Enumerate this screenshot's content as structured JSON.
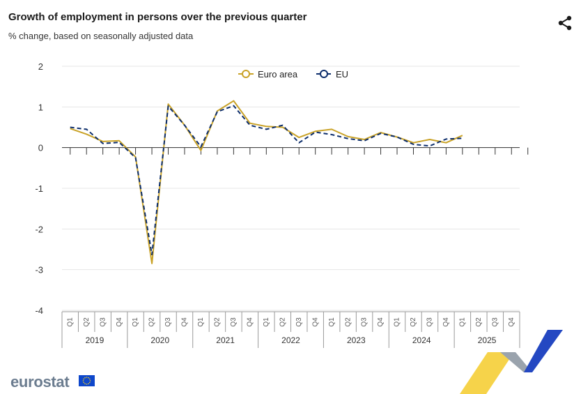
{
  "header": {
    "title": "Growth of employment in persons over the previous quarter",
    "subtitle": "% change, based on seasonally adjusted data",
    "share_icon": "share-icon"
  },
  "footer": {
    "logo_text": "eurostat",
    "flag_icon": "eu-flag-icon"
  },
  "chart_data": {
    "type": "line",
    "title": "Growth of employment in persons over the previous quarter",
    "subtitle": "% change, based on seasonally adjusted data",
    "ylim": [
      -4,
      2
    ],
    "yticks": [
      2,
      1,
      0,
      -1,
      -2,
      -3,
      -4
    ],
    "grid": true,
    "legend_position": "top-center",
    "quarters": [
      "Q1",
      "Q2",
      "Q3",
      "Q4"
    ],
    "years": [
      "2019",
      "2020",
      "2021",
      "2022",
      "2023",
      "2024",
      "2025"
    ],
    "categories": [
      "2019 Q1",
      "2019 Q2",
      "2019 Q3",
      "2019 Q4",
      "2020 Q1",
      "2020 Q2",
      "2020 Q3",
      "2020 Q4",
      "2021 Q1",
      "2021 Q2",
      "2021 Q3",
      "2021 Q4",
      "2022 Q1",
      "2022 Q2",
      "2022 Q3",
      "2022 Q4",
      "2023 Q1",
      "2023 Q2",
      "2023 Q3",
      "2023 Q4",
      "2024 Q1",
      "2024 Q2",
      "2024 Q3",
      "2024 Q4",
      "2025 Q1",
      "2025 Q2",
      "2025 Q3",
      "2025 Q4"
    ],
    "series": [
      {
        "name": "Euro area",
        "color": "#c9a227",
        "dash": false,
        "values": [
          0.47,
          0.33,
          0.15,
          0.17,
          -0.23,
          -2.85,
          1.07,
          0.55,
          -0.07,
          0.9,
          1.15,
          0.6,
          0.52,
          0.5,
          0.25,
          0.4,
          0.45,
          0.27,
          0.2,
          0.37,
          0.26,
          0.12,
          0.2,
          0.12,
          0.3,
          null,
          null,
          null
        ]
      },
      {
        "name": "EU",
        "color": "#0c2d6b",
        "dash": true,
        "values": [
          0.5,
          0.45,
          0.1,
          0.13,
          -0.25,
          -2.63,
          1.02,
          0.55,
          0.02,
          0.88,
          1.03,
          0.55,
          0.45,
          0.55,
          0.12,
          0.38,
          0.32,
          0.22,
          0.17,
          0.35,
          0.26,
          0.08,
          0.04,
          0.21,
          0.23,
          null,
          null,
          null
        ]
      }
    ]
  }
}
